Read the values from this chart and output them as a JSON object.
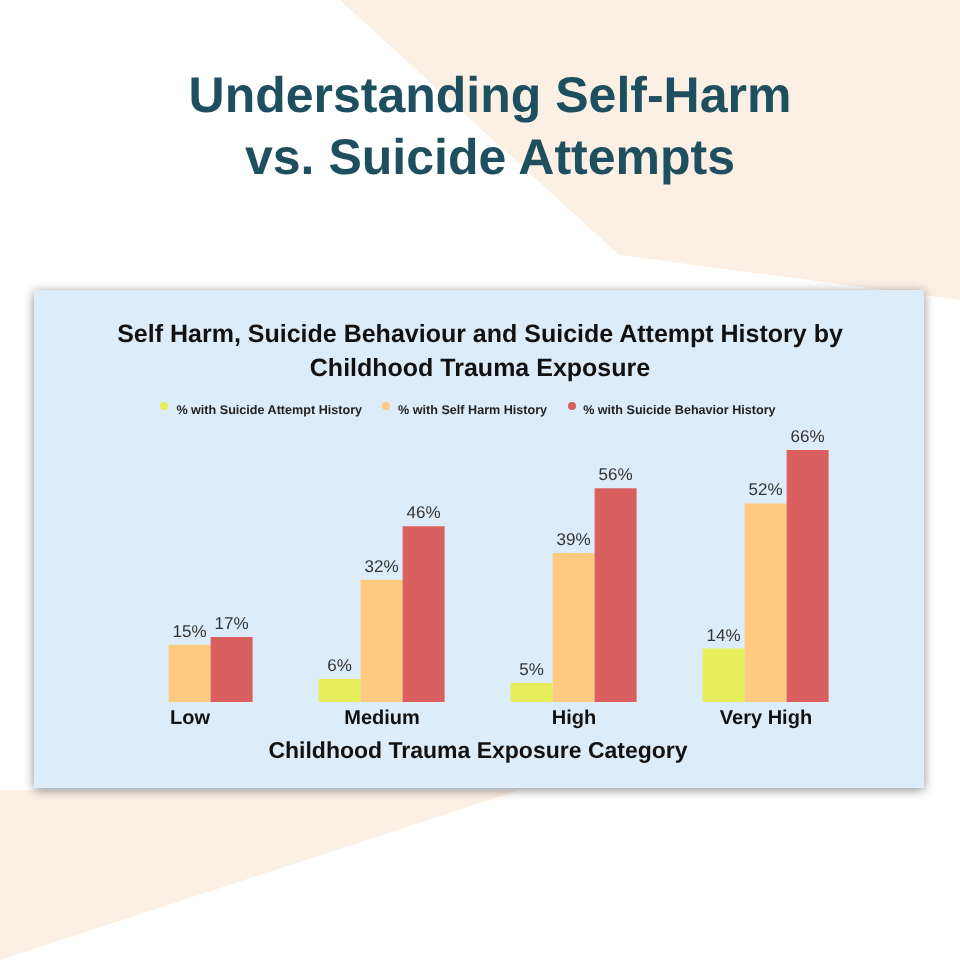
{
  "chart_data": {
    "type": "bar",
    "title": "Understanding Self-Harm vs. Suicide Attempts",
    "subtitle": "Self Harm, Suicide Behaviour and Suicide Attempt History by Childhood Trauma Exposure",
    "xlabel": "Childhood Trauma Exposure Category",
    "categories": [
      "Low",
      "Medium",
      "High",
      "Very High"
    ],
    "series": [
      {
        "name": "% with Suicide Attempt History",
        "color": "#e6ee5e",
        "values": [
          null,
          6,
          5,
          14
        ],
        "value_labels": [
          null,
          "6%",
          "5%",
          "14%"
        ]
      },
      {
        "name": "% with Self Harm History",
        "color": "#fdca7f",
        "values": [
          15,
          32,
          39,
          52
        ],
        "value_labels": [
          "15%",
          "32%",
          "39%",
          "52%"
        ]
      },
      {
        "name": "% with Suicide Behavior History",
        "color": "#d9605f",
        "values": [
          17,
          46,
          56,
          66
        ],
        "value_labels": [
          "17%",
          "46%",
          "56%",
          "66%"
        ]
      }
    ],
    "legend": "top"
  }
}
